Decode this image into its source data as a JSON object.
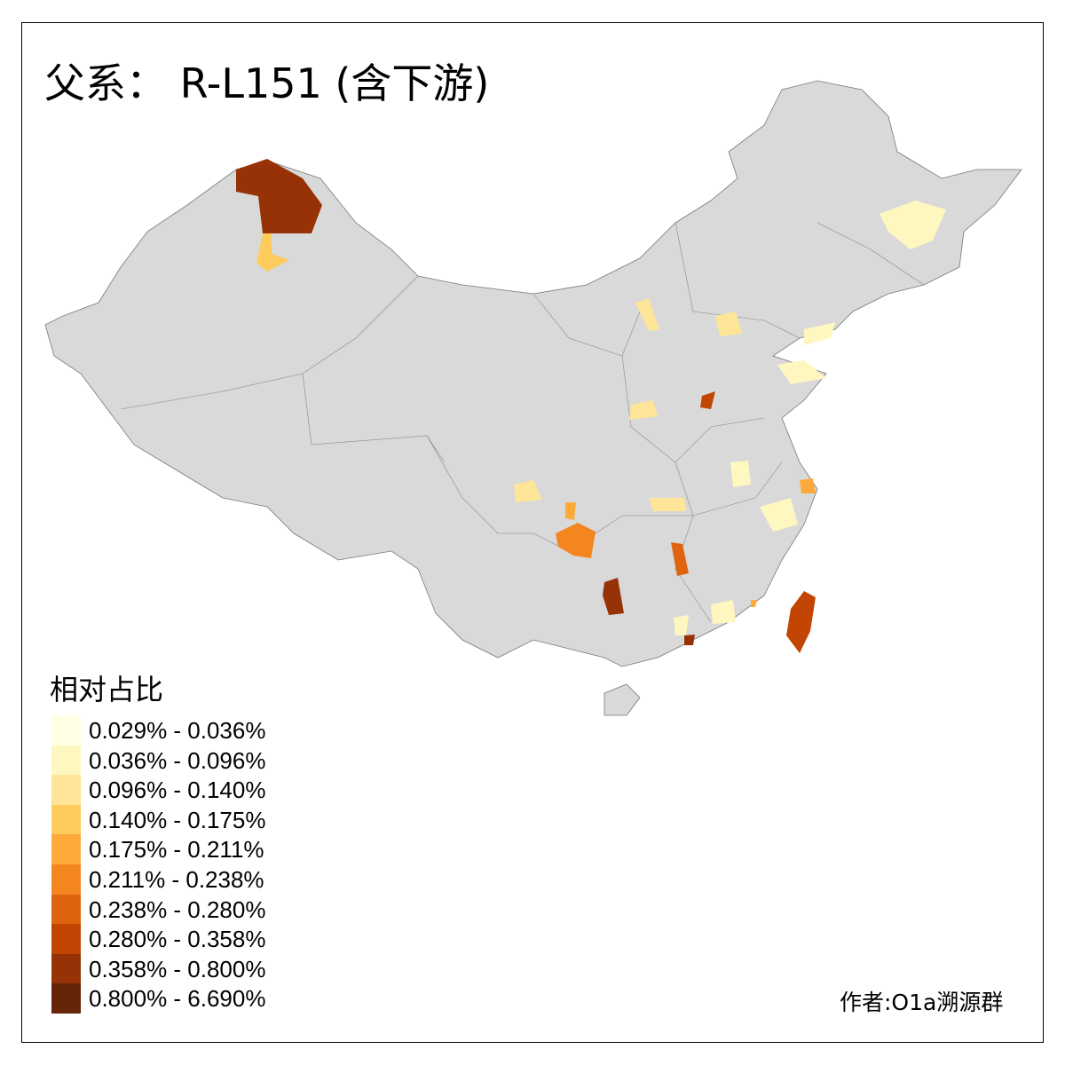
{
  "title": "父系： R-L151 (含下游)",
  "legend": {
    "title": "相对占比",
    "items": [
      {
        "label": "0.029% - 0.036%",
        "color": "#FFFFE5"
      },
      {
        "label": "0.036% - 0.096%",
        "color": "#FFF7C0"
      },
      {
        "label": "0.096% - 0.140%",
        "color": "#FEE597"
      },
      {
        "label": "0.140% - 0.175%",
        "color": "#FECC5C"
      },
      {
        "label": "0.175% - 0.211%",
        "color": "#FEAA3A"
      },
      {
        "label": "0.211% - 0.238%",
        "color": "#F4861F"
      },
      {
        "label": "0.238% - 0.280%",
        "color": "#E0640F"
      },
      {
        "label": "0.280% - 0.358%",
        "color": "#C24503"
      },
      {
        "label": "0.358% - 0.800%",
        "color": "#963205"
      },
      {
        "label": "0.800% - 6.690%",
        "color": "#662506"
      }
    ]
  },
  "no_data_color": "#D9D9D9",
  "credit": "作者:O1a溯源群"
}
